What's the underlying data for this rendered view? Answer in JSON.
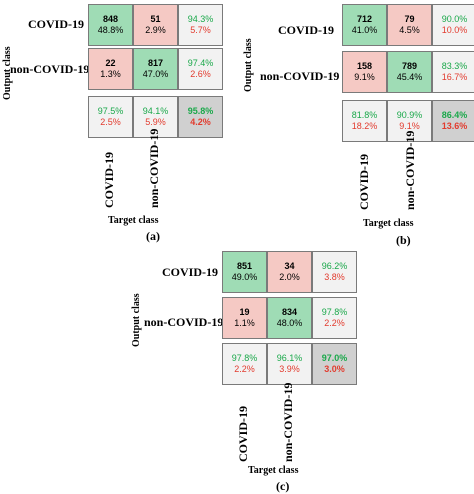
{
  "panels": [
    {
      "label": "(a)",
      "output_class_label": "Output class",
      "target_class_label": "Target class",
      "classes": [
        "COVID-19",
        "non-COVID-19"
      ],
      "cells": [
        [
          {
            "count": "848",
            "pct": "48.8%"
          },
          {
            "count": "51",
            "pct": "2.9%"
          },
          {
            "pct_g": "94.3%",
            "pct_r": "5.7%"
          }
        ],
        [
          {
            "count": "22",
            "pct": "1.3%"
          },
          {
            "count": "817",
            "pct": "47.0%"
          },
          {
            "pct_g": "97.4%",
            "pct_r": "2.6%"
          }
        ],
        [
          {
            "pct_g": "97.5%",
            "pct_r": "2.5%"
          },
          {
            "pct_g": "94.1%",
            "pct_r": "5.9%"
          },
          {
            "pct_g": "95.8%",
            "pct_r": "4.2%"
          }
        ]
      ]
    },
    {
      "label": "(b)",
      "output_class_label": "Output class",
      "target_class_label": "Target class",
      "classes": [
        "COVID-19",
        "non-COVID-19"
      ],
      "cells": [
        [
          {
            "count": "712",
            "pct": "41.0%"
          },
          {
            "count": "79",
            "pct": "4.5%"
          },
          {
            "pct_g": "90.0%",
            "pct_r": "10.0%"
          }
        ],
        [
          {
            "count": "158",
            "pct": "9.1%"
          },
          {
            "count": "789",
            "pct": "45.4%"
          },
          {
            "pct_g": "83.3%",
            "pct_r": "16.7%"
          }
        ],
        [
          {
            "pct_g": "81.8%",
            "pct_r": "18.2%"
          },
          {
            "pct_g": "90.9%",
            "pct_r": "9.1%"
          },
          {
            "pct_g": "86.4%",
            "pct_r": "13.6%"
          }
        ]
      ]
    },
    {
      "label": "(c)",
      "output_class_label": "Output class",
      "target_class_label": "Target class",
      "classes": [
        "COVID-19",
        "non-COVID-19"
      ],
      "cells": [
        [
          {
            "count": "851",
            "pct": "49.0%"
          },
          {
            "count": "34",
            "pct": "2.0%"
          },
          {
            "pct_g": "96.2%",
            "pct_r": "3.8%"
          }
        ],
        [
          {
            "count": "19",
            "pct": "1.1%"
          },
          {
            "count": "834",
            "pct": "48.0%"
          },
          {
            "pct_g": "97.8%",
            "pct_r": "2.2%"
          }
        ],
        [
          {
            "pct_g": "97.8%",
            "pct_r": "2.2%"
          },
          {
            "pct_g": "96.1%",
            "pct_r": "3.9%"
          },
          {
            "pct_g": "97.0%",
            "pct_r": "3.0%"
          }
        ]
      ]
    }
  ],
  "colors": {
    "correct": "#9fdcb5",
    "error": "#f5c9c4",
    "summary": "#f2f2f2",
    "total": "#d0d0d0",
    "green_text": "#1aa84a",
    "red_text": "#e23b2e"
  }
}
